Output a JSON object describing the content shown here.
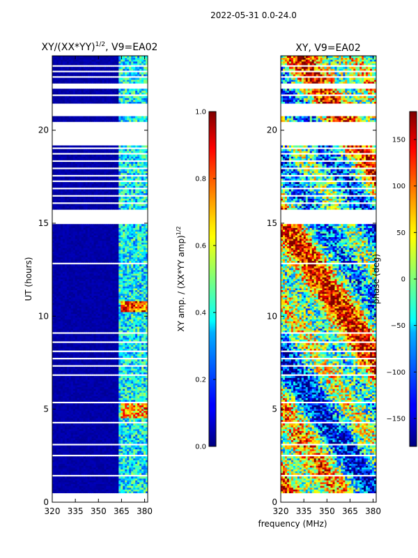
{
  "figure": {
    "suptitle": "2022-05-31 0.0-24.0",
    "xlabel_shared": "frequency (MHz)"
  },
  "chart_data": [
    {
      "type": "heatmap",
      "title": "XY/(XX*YY)",
      "title_exponent": "1/2",
      "title_suffix": ", V9=EA02",
      "xlabel": "",
      "ylabel": "UT (hours)",
      "xlim": [
        320,
        382
      ],
      "ylim": [
        0,
        24
      ],
      "x_ticks": [
        320,
        335,
        350,
        365,
        380
      ],
      "x_tick_labels": [
        "320",
        "335",
        "350",
        "365",
        "380"
      ],
      "y_ticks": [
        0,
        5,
        10,
        15,
        20
      ],
      "y_tick_labels": [
        "0",
        "5",
        "10",
        "15",
        "20"
      ],
      "colorbar": {
        "label": "XY amp. / (XX*YY amp)",
        "label_exponent": "1/2",
        "range": [
          0.0,
          1.0
        ],
        "ticks": [
          0.0,
          0.2,
          0.4,
          0.6,
          0.8,
          1.0
        ],
        "tick_labels": [
          "0.0",
          "0.2",
          "0.4",
          "0.6",
          "0.8",
          "1.0"
        ],
        "colormap": "jet"
      },
      "data_extent_hours": [
        0.4,
        24.0
      ],
      "description_of_values": [
        {
          "freq_range": [
            320,
            362
          ],
          "typical_value": 0.02
        },
        {
          "freq_range": [
            362,
            382
          ],
          "typical_value": 0.35
        },
        {
          "freq_range": [
            365,
            381
          ],
          "hours": [
            10.2,
            10.8
          ],
          "typical_value": 0.85
        },
        {
          "freq_range": [
            365,
            381
          ],
          "hours": [
            4.5,
            5.3
          ],
          "typical_value": 0.75
        }
      ]
    },
    {
      "type": "heatmap",
      "title": "XY, V9=EA02",
      "xlabel": "",
      "ylabel": "",
      "xlim": [
        320,
        382
      ],
      "ylim": [
        0,
        24
      ],
      "x_ticks": [
        320,
        335,
        350,
        365,
        380
      ],
      "x_tick_labels": [
        "320",
        "335",
        "350",
        "365",
        "380"
      ],
      "y_ticks": [
        0,
        5,
        10,
        15,
        20
      ],
      "y_tick_labels": [
        "0",
        "5",
        "10",
        "15",
        "20"
      ],
      "colorbar": {
        "label": "phase (deg)",
        "range": [
          -180,
          180
        ],
        "ticks": [
          -150,
          -100,
          -50,
          0,
          50,
          100,
          150
        ],
        "tick_labels": [
          "−150",
          "−100",
          "−50",
          "0",
          "50",
          "100",
          "150"
        ],
        "colormap": "jet"
      },
      "data_extent_hours": [
        0.4,
        24.0
      ],
      "description_of_values": "phase varies across full range -180..180 deg"
    }
  ],
  "data_gaps_hours": [
    [
      0.35,
      0.45
    ],
    [
      1.4,
      1.47
    ],
    [
      1.75,
      1.82
    ],
    [
      2.5,
      2.57
    ],
    [
      3.1,
      3.16
    ],
    [
      3.5,
      3.56
    ],
    [
      3.9,
      3.95
    ],
    [
      4.25,
      4.31
    ],
    [
      5.35,
      5.45
    ],
    [
      5.6,
      5.66
    ],
    [
      5.9,
      5.95
    ],
    [
      6.35,
      6.42
    ],
    [
      6.8,
      6.86
    ],
    [
      7.25,
      7.4
    ],
    [
      7.7,
      7.78
    ],
    [
      8.1,
      8.17
    ],
    [
      8.6,
      8.67
    ],
    [
      9.05,
      9.12
    ],
    [
      9.5,
      9.57
    ],
    [
      10.0,
      10.07
    ],
    [
      10.9,
      10.96
    ],
    [
      11.3,
      11.36
    ],
    [
      12.8,
      12.86
    ],
    [
      13.55,
      13.6
    ],
    [
      14.15,
      14.21
    ],
    [
      15.0,
      15.7
    ],
    [
      16.0,
      16.1
    ],
    [
      16.4,
      16.5
    ],
    [
      16.8,
      16.9
    ],
    [
      17.2,
      17.3
    ],
    [
      17.55,
      17.65
    ],
    [
      17.95,
      18.05
    ],
    [
      18.3,
      18.4
    ],
    [
      18.65,
      18.75
    ],
    [
      19.0,
      19.1
    ],
    [
      19.2,
      20.5
    ],
    [
      20.8,
      21.4
    ],
    [
      21.8,
      21.9
    ],
    [
      22.2,
      22.5
    ],
    [
      22.8,
      22.9
    ],
    [
      23.1,
      23.2
    ],
    [
      23.45,
      23.55
    ],
    [
      23.7,
      23.75
    ]
  ]
}
